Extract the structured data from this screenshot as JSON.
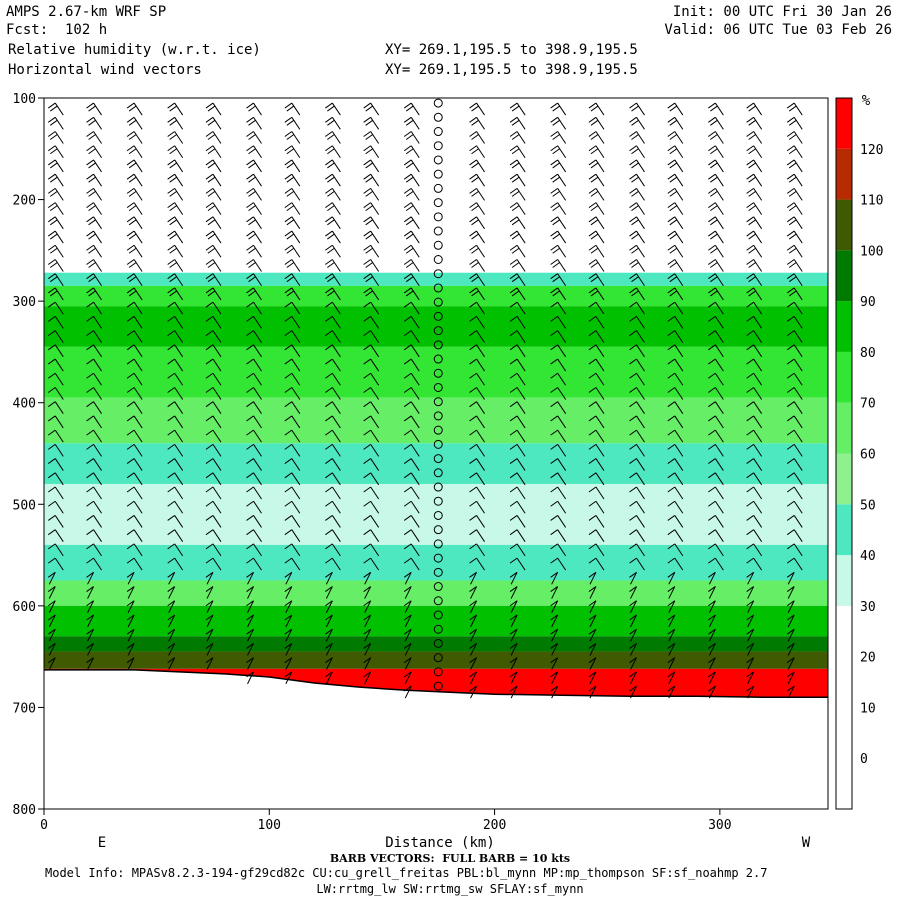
{
  "header": {
    "model": "AMPS 2.67-km WRF SP",
    "fcst": "Fcst:  102 h",
    "field1": "Relative humidity (w.r.t. ice)",
    "field2": "Horizontal wind vectors",
    "init": "Init: 00 UTC Fri 30 Jan 26",
    "valid": "Valid: 06 UTC Tue 03 Feb 26",
    "xy1": "XY= 269.1,195.5 to 398.9,195.5",
    "xy2": "XY= 269.1,195.5 to 398.9,195.5"
  },
  "footer": {
    "barb_note": "BARB VECTORS:  FULL BARB = 10 kts",
    "model_info": "Model Info: MPASv8.2.3-194-gf29cd82c CU:cu_grell_freitas PBL:bl_mynn MP:mp_thompson SF:sf_noahmp 2.7",
    "physics": "LW:rrtmg_lw SW:rrtmg_sw SFLAY:sf_mynn"
  },
  "chart_data": {
    "type": "heatmap",
    "xlabel": "Distance (km)",
    "ylabel": "",
    "x_ticks": [
      0,
      100,
      200,
      300
    ],
    "y_ticks": [
      100,
      200,
      300,
      400,
      500,
      600,
      700,
      800
    ],
    "xlim": [
      0,
      348
    ],
    "ylim": [
      800,
      100
    ],
    "x_end_labels": {
      "left": "E",
      "right": "W"
    },
    "colorbar": {
      "unit": "%",
      "ticks": [
        0,
        10,
        20,
        30,
        40,
        50,
        60,
        70,
        80,
        90,
        100,
        110,
        120
      ],
      "levels": [
        -10,
        0,
        10,
        20,
        30,
        40,
        50,
        60,
        70,
        80,
        90,
        100,
        110,
        120,
        130
      ],
      "colors": [
        "#ffffff",
        "#ffffff",
        "#ffffff",
        "#ffffff",
        "#c8f8e8",
        "#4de8c0",
        "#8ef08e",
        "#66ee66",
        "#33e633",
        "#00c000",
        "#007a00",
        "#3f5a00",
        "#b82a00",
        "#ff0000"
      ]
    },
    "terrain_pressure": [
      [
        0,
        663
      ],
      [
        40,
        663
      ],
      [
        60,
        665
      ],
      [
        80,
        667
      ],
      [
        100,
        670
      ],
      [
        120,
        676
      ],
      [
        140,
        680
      ],
      [
        160,
        683
      ],
      [
        180,
        685
      ],
      [
        200,
        687
      ],
      [
        230,
        688
      ],
      [
        260,
        689
      ],
      [
        290,
        689
      ],
      [
        320,
        690
      ],
      [
        348,
        690
      ]
    ],
    "rh_layers": [
      {
        "p_top": 100,
        "p_bot": 272,
        "rh": 10
      },
      {
        "p_top": 272,
        "p_bot": 285,
        "rh": 45
      },
      {
        "p_top": 285,
        "p_bot": 305,
        "rh": 70
      },
      {
        "p_top": 305,
        "p_bot": 345,
        "rh": 85
      },
      {
        "p_top": 345,
        "p_bot": 395,
        "rh": 75
      },
      {
        "p_top": 395,
        "p_bot": 440,
        "rh": 65
      },
      {
        "p_top": 440,
        "p_bot": 480,
        "rh": 45
      },
      {
        "p_top": 480,
        "p_bot": 540,
        "rh": 35
      },
      {
        "p_top": 540,
        "p_bot": 575,
        "rh": 45
      },
      {
        "p_top": 575,
        "p_bot": 600,
        "rh": 65
      },
      {
        "p_top": 600,
        "p_bot": 630,
        "rh": 85
      },
      {
        "p_top": 630,
        "p_bot": 645,
        "rh": 95
      },
      {
        "p_top": 645,
        "p_bot": 662,
        "rh": 105
      },
      {
        "p_top": 662,
        "p_bot": 700,
        "rh": 125
      }
    ],
    "barb_columns_km": [
      5,
      22,
      40,
      58,
      75,
      93,
      110,
      128,
      145,
      163,
      175,
      192,
      210,
      228,
      245,
      263,
      280,
      298,
      315,
      333
    ]
  }
}
